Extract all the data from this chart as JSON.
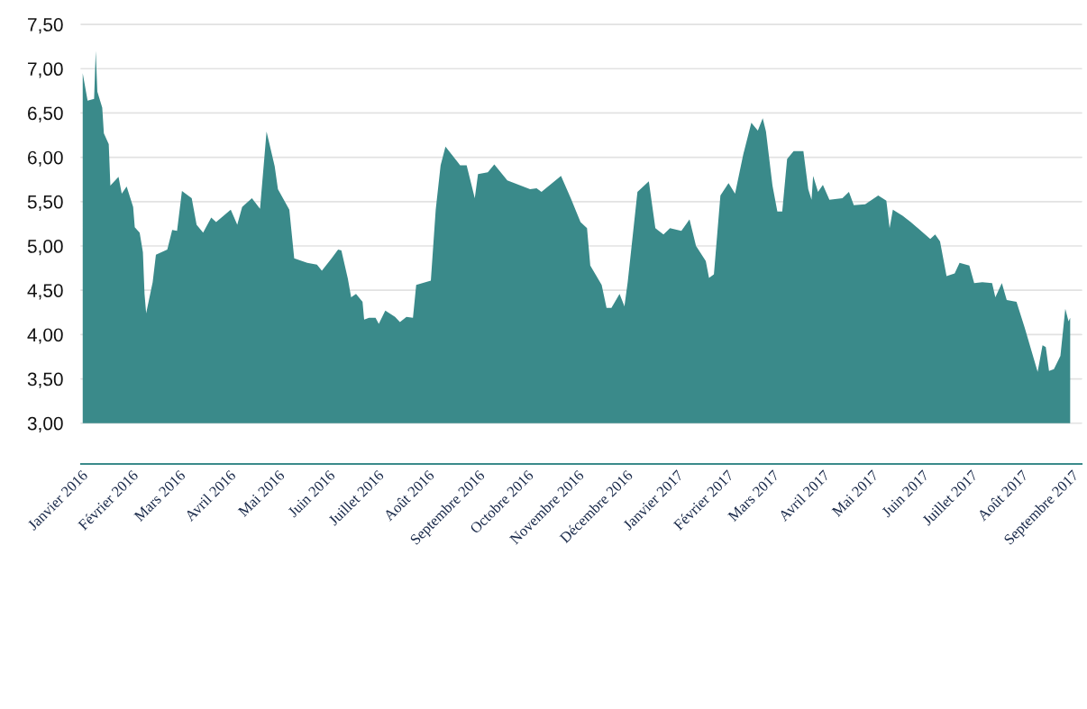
{
  "chart_data": {
    "type": "area",
    "x": [
      "2016-01-02",
      "2016-01-05",
      "2016-01-09",
      "2016-01-10",
      "2016-01-11",
      "2016-01-14",
      "2016-01-15",
      "2016-01-18",
      "2016-01-19",
      "2016-01-24",
      "2016-01-26",
      "2016-01-29",
      "2016-02-02",
      "2016-02-03",
      "2016-02-06",
      "2016-02-08",
      "2016-02-09",
      "2016-02-10",
      "2016-02-14",
      "2016-02-16",
      "2016-02-23",
      "2016-02-26",
      "2016-02-29",
      "2016-03-03",
      "2016-03-09",
      "2016-03-12",
      "2016-03-16",
      "2016-03-21",
      "2016-03-24",
      "2016-04-02",
      "2016-04-06",
      "2016-04-09",
      "2016-04-15",
      "2016-04-20",
      "2016-04-24",
      "2016-04-29",
      "2016-05-01",
      "2016-05-08",
      "2016-05-11",
      "2016-05-19",
      "2016-05-25",
      "2016-05-28",
      "2016-06-03",
      "2016-06-07",
      "2016-06-09",
      "2016-06-13",
      "2016-06-15",
      "2016-06-18",
      "2016-06-22",
      "2016-06-23",
      "2016-06-26",
      "2016-06-30",
      "2016-07-02",
      "2016-07-06",
      "2016-07-12",
      "2016-07-15",
      "2016-07-19",
      "2016-07-23",
      "2016-07-25",
      "2016-08-03",
      "2016-08-06",
      "2016-08-09",
      "2016-08-12",
      "2016-08-21",
      "2016-08-25",
      "2016-08-30",
      "2016-09-01",
      "2016-09-07",
      "2016-09-11",
      "2016-09-19",
      "2016-10-03",
      "2016-10-07",
      "2016-10-10",
      "2016-10-22",
      "2016-10-28",
      "2016-11-03",
      "2016-11-07",
      "2016-11-09",
      "2016-11-16",
      "2016-11-19",
      "2016-11-22",
      "2016-11-27",
      "2016-11-30",
      "2016-12-02",
      "2016-12-08",
      "2016-12-15",
      "2016-12-19",
      "2016-12-24",
      "2016-12-28",
      "2017-01-04",
      "2017-01-09",
      "2017-01-13",
      "2017-01-19",
      "2017-01-21",
      "2017-01-24",
      "2017-01-28",
      "2017-02-02",
      "2017-02-06",
      "2017-02-11",
      "2017-02-16",
      "2017-02-20",
      "2017-02-23",
      "2017-02-25",
      "2017-03-01",
      "2017-03-04",
      "2017-03-07",
      "2017-03-10",
      "2017-03-14",
      "2017-03-20",
      "2017-03-23",
      "2017-03-25",
      "2017-03-26",
      "2017-03-29",
      "2017-04-01",
      "2017-04-05",
      "2017-04-13",
      "2017-04-17",
      "2017-04-20",
      "2017-04-27",
      "2017-05-05",
      "2017-05-10",
      "2017-05-12",
      "2017-05-14",
      "2017-05-20",
      "2017-05-25",
      "2017-06-06",
      "2017-06-09",
      "2017-06-12",
      "2017-06-16",
      "2017-06-21",
      "2017-06-24",
      "2017-06-30",
      "2017-07-03",
      "2017-07-08",
      "2017-07-14",
      "2017-07-16",
      "2017-07-20",
      "2017-07-23",
      "2017-07-29",
      "2017-08-03",
      "2017-08-11",
      "2017-08-14",
      "2017-08-16",
      "2017-08-18",
      "2017-08-21",
      "2017-08-25",
      "2017-08-28",
      "2017-08-30",
      "2017-08-31"
    ],
    "series": [
      {
        "color": "#3a8a8a",
        "values": [
          6.95,
          6.64,
          6.66,
          7.2,
          6.74,
          6.56,
          6.27,
          6.15,
          5.68,
          5.78,
          5.59,
          5.67,
          5.44,
          5.21,
          5.15,
          4.93,
          4.46,
          4.24,
          4.59,
          4.9,
          4.96,
          5.18,
          5.17,
          5.62,
          5.54,
          5.24,
          5.15,
          5.32,
          5.27,
          5.41,
          5.24,
          5.44,
          5.54,
          5.42,
          6.29,
          5.9,
          5.64,
          5.41,
          4.86,
          4.81,
          4.79,
          4.72,
          4.86,
          4.96,
          4.95,
          4.63,
          4.42,
          4.46,
          4.37,
          4.17,
          4.19,
          4.19,
          4.12,
          4.27,
          4.2,
          4.14,
          4.2,
          4.19,
          4.56,
          4.61,
          5.41,
          5.91,
          6.12,
          5.91,
          5.91,
          5.54,
          5.81,
          5.83,
          5.92,
          5.74,
          5.64,
          5.65,
          5.61,
          5.79,
          5.54,
          5.27,
          5.2,
          4.78,
          4.56,
          4.3,
          4.3,
          4.46,
          4.32,
          4.59,
          5.61,
          5.73,
          5.2,
          5.13,
          5.2,
          5.17,
          5.3,
          5.0,
          4.83,
          4.64,
          4.68,
          5.57,
          5.71,
          5.59,
          6.03,
          6.39,
          6.3,
          6.44,
          6.29,
          5.68,
          5.39,
          5.39,
          5.98,
          6.07,
          6.07,
          5.64,
          5.52,
          5.79,
          5.61,
          5.69,
          5.52,
          5.54,
          5.61,
          5.46,
          5.47,
          5.57,
          5.51,
          5.2,
          5.41,
          5.34,
          5.27,
          5.08,
          5.13,
          5.05,
          4.66,
          4.69,
          4.81,
          4.78,
          4.58,
          4.59,
          4.58,
          4.42,
          4.58,
          4.39,
          4.37,
          4.08,
          3.58,
          3.88,
          3.86,
          3.59,
          3.61,
          3.76,
          4.29,
          4.15,
          4.19
        ]
      }
    ],
    "xlim": [
      "2016-01-01",
      "2017-09-07"
    ],
    "xticks": [
      {
        "value": "2016-01-01",
        "label": "Janvier 2016"
      },
      {
        "value": "2016-02-01",
        "label": "Février 2016"
      },
      {
        "value": "2016-03-01",
        "label": "Mars 2016"
      },
      {
        "value": "2016-04-01",
        "label": "Avril 2016"
      },
      {
        "value": "2016-05-01",
        "label": "Mai 2016"
      },
      {
        "value": "2016-06-01",
        "label": "Juin 2016"
      },
      {
        "value": "2016-07-01",
        "label": "Juillet 2016"
      },
      {
        "value": "2016-08-01",
        "label": "Août 2016"
      },
      {
        "value": "2016-09-01",
        "label": "Septembre 2016"
      },
      {
        "value": "2016-10-01",
        "label": "Octobre 2016"
      },
      {
        "value": "2016-11-01",
        "label": "Novembre 2016"
      },
      {
        "value": "2016-12-01",
        "label": "Décembre 2016"
      },
      {
        "value": "2017-01-01",
        "label": "Janvier 2017"
      },
      {
        "value": "2017-02-01",
        "label": "Février 2017"
      },
      {
        "value": "2017-03-01",
        "label": "Mars 2017"
      },
      {
        "value": "2017-04-01",
        "label": "Avril 2017"
      },
      {
        "value": "2017-05-01",
        "label": "Mai 2017"
      },
      {
        "value": "2017-06-01",
        "label": "Juin 2017"
      },
      {
        "value": "2017-07-01",
        "label": "Juillet 2017"
      },
      {
        "value": "2017-08-01",
        "label": "Août 2017"
      },
      {
        "value": "2017-09-01",
        "label": "Septembre 2017"
      }
    ],
    "ylim": [
      2.54,
      7.5
    ],
    "yticks": [
      {
        "value": 3,
        "label": "3,00"
      },
      {
        "value": 3.5,
        "label": "3,50"
      },
      {
        "value": 4,
        "label": "4,00"
      },
      {
        "value": 4.5,
        "label": "4,50"
      },
      {
        "value": 5,
        "label": "5,00"
      },
      {
        "value": 5.5,
        "label": "5,50"
      },
      {
        "value": 6,
        "label": "6,00"
      },
      {
        "value": 6.5,
        "label": "6,50"
      },
      {
        "value": 7,
        "label": "7,00"
      },
      {
        "value": 7.5,
        "label": "7,50"
      }
    ],
    "grid": "y"
  }
}
